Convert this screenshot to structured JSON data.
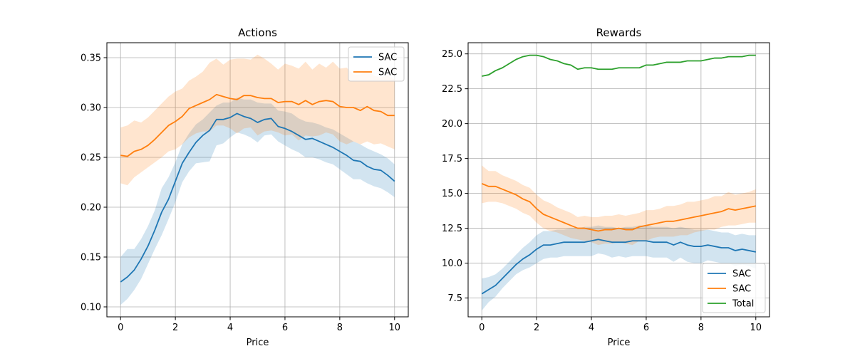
{
  "chart_data": [
    {
      "type": "line",
      "title": "Actions",
      "xlabel": "Price",
      "ylabel": "",
      "xlim": [
        -0.5,
        10.5
      ],
      "ylim": [
        0.09,
        0.365
      ],
      "xticks": [
        0,
        2,
        4,
        6,
        8,
        10
      ],
      "xtick_labels": [
        "0",
        "2",
        "4",
        "6",
        "8",
        "10"
      ],
      "yticks": [
        0.1,
        0.15,
        0.2,
        0.25,
        0.3,
        0.35
      ],
      "ytick_labels": [
        "0.10",
        "0.15",
        "0.20",
        "0.25",
        "0.30",
        "0.35"
      ],
      "grid": true,
      "legend_position": "upper right",
      "x": [
        0,
        0.25,
        0.5,
        0.75,
        1.0,
        1.25,
        1.5,
        1.75,
        2.0,
        2.25,
        2.5,
        2.75,
        3.0,
        3.25,
        3.5,
        3.75,
        4.0,
        4.25,
        4.5,
        4.75,
        5.0,
        5.25,
        5.5,
        5.75,
        6.0,
        6.25,
        6.5,
        6.75,
        7.0,
        7.25,
        7.5,
        7.75,
        8.0,
        8.25,
        8.5,
        8.75,
        9.0,
        9.25,
        9.5,
        9.75,
        10.0
      ],
      "series": [
        {
          "name": "SAC",
          "color": "#1f77b4",
          "values": [
            0.125,
            0.13,
            0.137,
            0.148,
            0.161,
            0.177,
            0.195,
            0.208,
            0.226,
            0.244,
            0.255,
            0.265,
            0.272,
            0.277,
            0.288,
            0.288,
            0.29,
            0.294,
            0.291,
            0.289,
            0.285,
            0.288,
            0.289,
            0.281,
            0.279,
            0.276,
            0.272,
            0.268,
            0.269,
            0.266,
            0.263,
            0.26,
            0.256,
            0.252,
            0.247,
            0.246,
            0.241,
            0.238,
            0.237,
            0.232,
            0.226
          ],
          "band_upper": [
            0.15,
            0.158,
            0.158,
            0.168,
            0.181,
            0.197,
            0.219,
            0.23,
            0.245,
            0.263,
            0.274,
            0.283,
            0.288,
            0.295,
            0.302,
            0.305,
            0.305,
            0.31,
            0.308,
            0.308,
            0.305,
            0.304,
            0.304,
            0.297,
            0.296,
            0.294,
            0.289,
            0.286,
            0.285,
            0.283,
            0.28,
            0.278,
            0.274,
            0.27,
            0.266,
            0.263,
            0.259,
            0.256,
            0.253,
            0.249,
            0.243
          ],
          "band_lower": [
            0.102,
            0.108,
            0.117,
            0.128,
            0.143,
            0.158,
            0.172,
            0.188,
            0.205,
            0.225,
            0.236,
            0.244,
            0.245,
            0.246,
            0.262,
            0.264,
            0.27,
            0.275,
            0.273,
            0.27,
            0.265,
            0.272,
            0.273,
            0.266,
            0.262,
            0.258,
            0.255,
            0.25,
            0.25,
            0.248,
            0.245,
            0.243,
            0.238,
            0.233,
            0.228,
            0.228,
            0.224,
            0.221,
            0.219,
            0.215,
            0.21
          ]
        },
        {
          "name": "SAC",
          "color": "#ff7f0e",
          "values": [
            0.252,
            0.251,
            0.256,
            0.258,
            0.262,
            0.268,
            0.275,
            0.282,
            0.286,
            0.291,
            0.299,
            0.302,
            0.305,
            0.308,
            0.313,
            0.311,
            0.309,
            0.308,
            0.312,
            0.312,
            0.31,
            0.309,
            0.309,
            0.305,
            0.306,
            0.306,
            0.303,
            0.307,
            0.303,
            0.306,
            0.307,
            0.306,
            0.301,
            0.3,
            0.3,
            0.297,
            0.301,
            0.297,
            0.296,
            0.292,
            0.292
          ],
          "band_upper": [
            0.28,
            0.282,
            0.287,
            0.285,
            0.29,
            0.297,
            0.304,
            0.311,
            0.316,
            0.319,
            0.327,
            0.331,
            0.336,
            0.345,
            0.349,
            0.343,
            0.348,
            0.349,
            0.349,
            0.348,
            0.353,
            0.349,
            0.344,
            0.338,
            0.344,
            0.342,
            0.339,
            0.346,
            0.338,
            0.344,
            0.34,
            0.346,
            0.339,
            0.34,
            0.333,
            0.333,
            0.338,
            0.332,
            0.33,
            0.332,
            0.328
          ],
          "band_lower": [
            0.224,
            0.222,
            0.23,
            0.235,
            0.24,
            0.245,
            0.25,
            0.256,
            0.258,
            0.263,
            0.27,
            0.274,
            0.276,
            0.276,
            0.282,
            0.282,
            0.279,
            0.274,
            0.279,
            0.28,
            0.272,
            0.276,
            0.277,
            0.275,
            0.272,
            0.273,
            0.267,
            0.272,
            0.271,
            0.272,
            0.275,
            0.273,
            0.266,
            0.263,
            0.266,
            0.263,
            0.266,
            0.263,
            0.264,
            0.261,
            0.258
          ]
        }
      ]
    },
    {
      "type": "line",
      "title": "Rewards",
      "xlabel": "Price",
      "ylabel": "",
      "xlim": [
        -0.5,
        10.5
      ],
      "ylim": [
        6.15,
        25.8
      ],
      "xticks": [
        0,
        2,
        4,
        6,
        8,
        10
      ],
      "xtick_labels": [
        "0",
        "2",
        "4",
        "6",
        "8",
        "10"
      ],
      "yticks": [
        7.5,
        10.0,
        12.5,
        15.0,
        17.5,
        20.0,
        22.5,
        25.0
      ],
      "ytick_labels": [
        "7.5",
        "10.0",
        "12.5",
        "15.0",
        "17.5",
        "20.0",
        "22.5",
        "25.0"
      ],
      "grid": true,
      "legend_position": "lower right",
      "x": [
        0,
        0.25,
        0.5,
        0.75,
        1.0,
        1.25,
        1.5,
        1.75,
        2.0,
        2.25,
        2.5,
        2.75,
        3.0,
        3.25,
        3.5,
        3.75,
        4.0,
        4.25,
        4.5,
        4.75,
        5.0,
        5.25,
        5.5,
        5.75,
        6.0,
        6.25,
        6.5,
        6.75,
        7.0,
        7.25,
        7.5,
        7.75,
        8.0,
        8.25,
        8.5,
        8.75,
        9.0,
        9.25,
        9.5,
        9.75,
        10.0
      ],
      "series": [
        {
          "name": "SAC",
          "color": "#1f77b4",
          "values": [
            7.8,
            8.1,
            8.4,
            8.9,
            9.4,
            9.9,
            10.3,
            10.6,
            11.0,
            11.3,
            11.3,
            11.4,
            11.5,
            11.5,
            11.5,
            11.5,
            11.6,
            11.7,
            11.6,
            11.5,
            11.5,
            11.5,
            11.6,
            11.6,
            11.6,
            11.5,
            11.5,
            11.5,
            11.3,
            11.5,
            11.3,
            11.2,
            11.2,
            11.3,
            11.2,
            11.1,
            11.1,
            10.9,
            11.0,
            10.9,
            10.8
          ],
          "band_upper": [
            8.9,
            9.0,
            9.2,
            9.6,
            10.1,
            10.6,
            11.1,
            11.5,
            12.0,
            12.3,
            12.3,
            12.4,
            12.4,
            12.5,
            12.5,
            12.6,
            12.6,
            12.7,
            12.6,
            12.6,
            12.5,
            12.6,
            12.6,
            12.7,
            12.7,
            12.6,
            12.6,
            12.6,
            12.5,
            12.6,
            12.5,
            12.4,
            12.4,
            12.4,
            12.3,
            12.2,
            12.2,
            12.0,
            12.1,
            12.0,
            12.0
          ],
          "band_lower": [
            6.6,
            7.2,
            7.6,
            8.2,
            8.7,
            9.2,
            9.5,
            9.7,
            10.0,
            10.3,
            10.4,
            10.4,
            10.5,
            10.5,
            10.5,
            10.5,
            10.5,
            10.7,
            10.6,
            10.4,
            10.5,
            10.4,
            10.5,
            10.5,
            10.5,
            10.4,
            10.4,
            10.4,
            10.1,
            10.4,
            10.1,
            10.0,
            10.0,
            10.2,
            10.1,
            10.0,
            10.0,
            9.8,
            9.9,
            9.8,
            9.6
          ]
        },
        {
          "name": "SAC",
          "color": "#ff7f0e",
          "values": [
            15.7,
            15.5,
            15.5,
            15.3,
            15.1,
            14.9,
            14.6,
            14.4,
            13.9,
            13.5,
            13.3,
            13.1,
            12.9,
            12.7,
            12.5,
            12.5,
            12.4,
            12.3,
            12.4,
            12.4,
            12.5,
            12.4,
            12.4,
            12.6,
            12.7,
            12.8,
            12.9,
            13.0,
            13.0,
            13.1,
            13.2,
            13.3,
            13.4,
            13.5,
            13.6,
            13.7,
            13.9,
            13.8,
            13.9,
            14.0,
            14.1
          ],
          "band_upper": [
            17.0,
            16.6,
            16.6,
            16.3,
            16.1,
            15.9,
            15.6,
            15.4,
            14.9,
            14.5,
            14.3,
            14.0,
            13.8,
            13.6,
            13.3,
            13.4,
            13.3,
            13.3,
            13.4,
            13.4,
            13.5,
            13.4,
            13.5,
            13.6,
            13.8,
            13.8,
            13.9,
            14.1,
            14.1,
            14.2,
            14.4,
            14.4,
            14.5,
            14.6,
            14.8,
            14.8,
            15.1,
            14.9,
            15.0,
            15.1,
            15.3
          ],
          "band_lower": [
            14.3,
            14.4,
            14.4,
            14.3,
            14.1,
            13.9,
            13.6,
            13.4,
            12.9,
            12.5,
            12.3,
            12.2,
            12.0,
            11.8,
            11.7,
            11.6,
            11.5,
            11.3,
            11.4,
            11.4,
            11.5,
            11.4,
            11.3,
            11.6,
            11.6,
            11.8,
            11.9,
            11.9,
            11.9,
            12.0,
            12.0,
            12.2,
            12.3,
            12.4,
            12.4,
            12.6,
            12.7,
            12.7,
            12.8,
            12.9,
            12.9
          ]
        },
        {
          "name": "Total",
          "color": "#2ca02c",
          "values": [
            23.4,
            23.5,
            23.8,
            24.0,
            24.3,
            24.6,
            24.8,
            24.9,
            24.9,
            24.8,
            24.6,
            24.5,
            24.3,
            24.2,
            23.9,
            24.0,
            24.0,
            23.9,
            23.9,
            23.9,
            24.0,
            24.0,
            24.0,
            24.0,
            24.2,
            24.2,
            24.3,
            24.4,
            24.4,
            24.4,
            24.5,
            24.5,
            24.5,
            24.6,
            24.7,
            24.7,
            24.8,
            24.8,
            24.8,
            24.9,
            24.9
          ]
        }
      ]
    }
  ]
}
